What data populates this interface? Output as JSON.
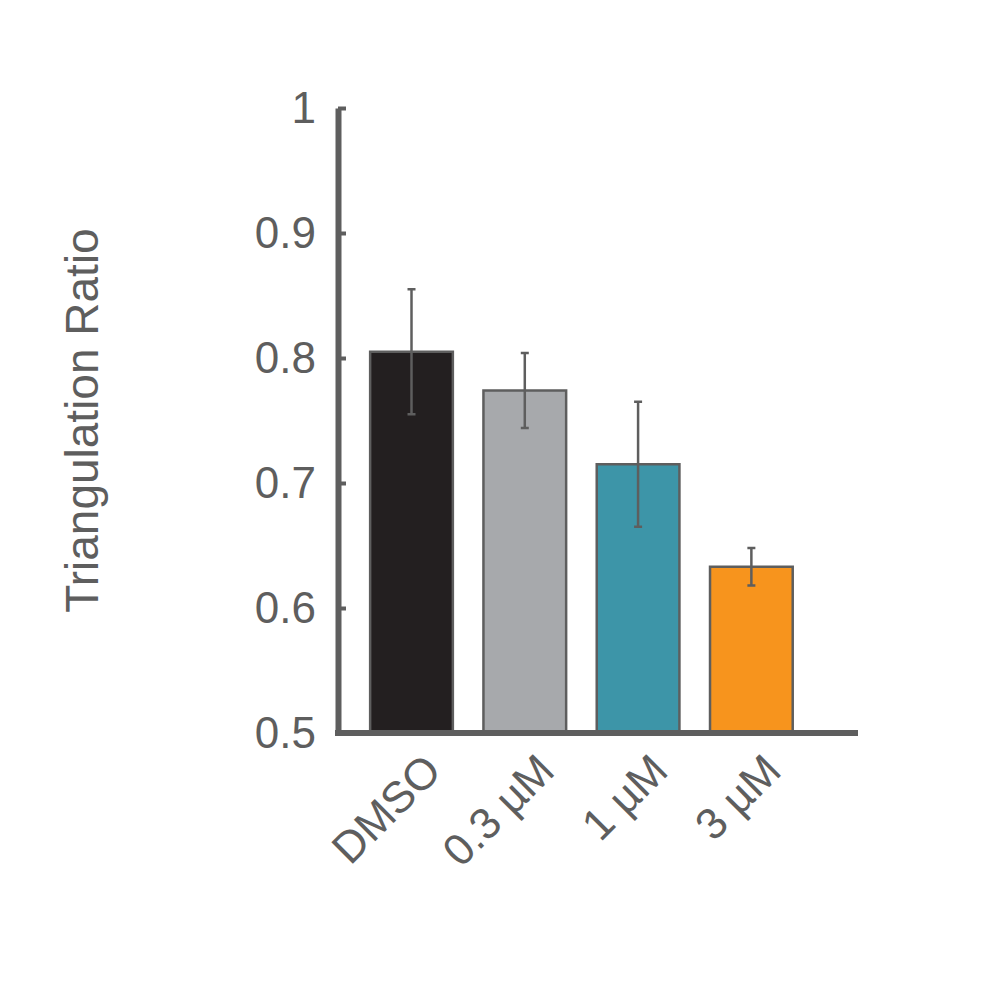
{
  "chart_data": {
    "type": "bar",
    "y_label": "Triangulation Ratio",
    "categories": [
      "DMSO",
      "0.3 µM",
      "1 µM",
      "3 µM"
    ],
    "values": [
      0.805,
      0.774,
      0.715,
      0.633
    ],
    "errors": [
      0.05,
      0.03,
      0.05,
      0.015
    ],
    "colors": [
      "#231f20",
      "#a7a9ac",
      "#3d95a8",
      "#f7941d"
    ],
    "ylim": [
      0.5,
      1
    ],
    "yticks": [
      0.5,
      0.6,
      0.7,
      0.8,
      0.9,
      1
    ],
    "grid": false
  }
}
